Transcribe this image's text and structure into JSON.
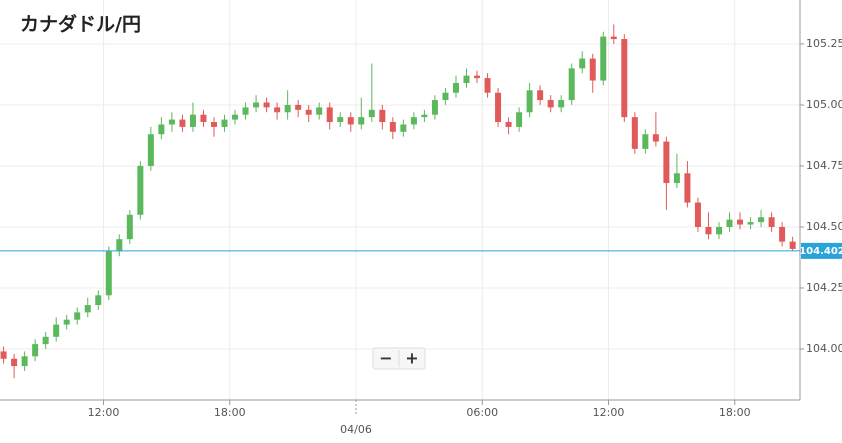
{
  "chart_data": {
    "type": "candlestick",
    "title": "カナダドル/円",
    "x": [
      7.25,
      7.75,
      8.25,
      8.75,
      9.25,
      9.75,
      10.25,
      10.75,
      11.25,
      11.75,
      12.25,
      12.75,
      13.25,
      13.75,
      14.25,
      14.75,
      15.25,
      15.75,
      16.25,
      16.75,
      17.25,
      17.75,
      18.25,
      18.75,
      19.25,
      19.75,
      20.25,
      20.75,
      21.25,
      21.75,
      22.25,
      22.75,
      23.25,
      23.75,
      24.25,
      24.75,
      25.25,
      25.75,
      26.25,
      26.75,
      27.25,
      27.75,
      28.25,
      28.75,
      29.25,
      29.75,
      30.25,
      30.75,
      31.25,
      31.75,
      32.25,
      32.75,
      33.25,
      33.75,
      34.25,
      34.75,
      35.25,
      35.75,
      36.25,
      36.75,
      37.25,
      37.75,
      38.25,
      38.75,
      39.25,
      39.75,
      40.25,
      40.75,
      41.25,
      41.75,
      42.25,
      42.75,
      43.25,
      43.75,
      44.25,
      44.75
    ],
    "open": [
      103.99,
      103.96,
      103.93,
      103.97,
      104.02,
      104.05,
      104.1,
      104.12,
      104.15,
      104.18,
      104.22,
      104.4,
      104.45,
      104.55,
      104.75,
      104.88,
      104.92,
      104.94,
      104.91,
      104.96,
      104.93,
      104.91,
      104.94,
      104.96,
      104.99,
      105.01,
      104.99,
      104.97,
      105.0,
      104.98,
      104.96,
      104.99,
      104.93,
      104.95,
      104.92,
      104.95,
      104.98,
      104.93,
      104.89,
      104.92,
      104.95,
      104.96,
      105.02,
      105.05,
      105.09,
      105.12,
      105.11,
      105.05,
      104.93,
      104.91,
      104.97,
      105.06,
      105.02,
      104.99,
      105.02,
      105.15,
      105.19,
      105.1,
      105.28,
      105.27,
      104.95,
      104.82,
      104.88,
      104.85,
      104.68,
      104.72,
      104.6,
      104.5,
      104.47,
      104.5,
      104.53,
      104.51,
      104.52,
      104.54,
      104.5,
      104.44
    ],
    "high": [
      104.01,
      103.98,
      103.99,
      104.04,
      104.07,
      104.13,
      104.14,
      104.17,
      104.21,
      104.24,
      104.42,
      104.47,
      104.57,
      104.77,
      104.91,
      104.95,
      104.97,
      104.96,
      105.01,
      104.98,
      104.95,
      104.96,
      104.98,
      105.01,
      105.04,
      105.03,
      105.01,
      105.06,
      105.02,
      105.0,
      105.01,
      105.01,
      104.97,
      104.97,
      105.03,
      105.17,
      105.0,
      104.95,
      104.94,
      104.97,
      104.98,
      105.04,
      105.07,
      105.12,
      105.15,
      105.14,
      105.13,
      105.07,
      104.95,
      104.99,
      105.09,
      105.08,
      105.04,
      105.04,
      105.17,
      105.22,
      105.21,
      105.3,
      105.33,
      105.29,
      104.97,
      104.9,
      104.97,
      104.87,
      104.8,
      104.77,
      104.62,
      104.56,
      104.52,
      104.56,
      104.56,
      104.54,
      104.57,
      104.56,
      104.52,
      104.46
    ],
    "low": [
      103.94,
      103.88,
      103.91,
      103.95,
      104.0,
      104.03,
      104.08,
      104.1,
      104.13,
      104.16,
      104.2,
      104.38,
      104.43,
      104.53,
      104.73,
      104.86,
      104.89,
      104.89,
      104.89,
      104.91,
      104.87,
      104.89,
      104.92,
      104.94,
      104.97,
      104.97,
      104.94,
      104.94,
      104.95,
      104.93,
      104.94,
      104.9,
      104.91,
      104.89,
      104.9,
      104.93,
      104.9,
      104.86,
      104.87,
      104.9,
      104.93,
      104.94,
      105.0,
      105.03,
      105.07,
      105.09,
      105.03,
      104.91,
      104.88,
      104.89,
      104.95,
      105.0,
      104.97,
      104.97,
      105.0,
      105.13,
      105.05,
      105.08,
      105.25,
      104.93,
      104.8,
      104.8,
      104.83,
      104.57,
      104.66,
      104.58,
      104.48,
      104.45,
      104.45,
      104.48,
      104.49,
      104.49,
      104.5,
      104.48,
      104.42,
      104.4
    ],
    "close": [
      103.96,
      103.93,
      103.97,
      104.02,
      104.05,
      104.1,
      104.12,
      104.15,
      104.18,
      104.22,
      104.4,
      104.45,
      104.55,
      104.75,
      104.88,
      104.92,
      104.94,
      104.91,
      104.96,
      104.93,
      104.91,
      104.94,
      104.96,
      104.99,
      105.01,
      104.99,
      104.97,
      105.0,
      104.98,
      104.96,
      104.99,
      104.93,
      104.95,
      104.92,
      104.95,
      104.98,
      104.93,
      104.89,
      104.92,
      104.95,
      104.96,
      105.02,
      105.05,
      105.09,
      105.12,
      105.11,
      105.05,
      104.93,
      104.91,
      104.97,
      105.06,
      105.02,
      104.99,
      105.02,
      105.15,
      105.19,
      105.1,
      105.28,
      105.27,
      104.95,
      104.82,
      104.88,
      104.85,
      104.68,
      104.72,
      104.6,
      104.5,
      104.47,
      104.5,
      104.53,
      104.51,
      104.52,
      104.54,
      104.5,
      104.44,
      104.41
    ],
    "up_color": "#5cb85c",
    "down_color": "#e05a5a",
    "current": 104.402,
    "current_color": "#29a3d9",
    "xlim": [
      7.08,
      45.1
    ],
    "ylim": [
      103.791,
      105.43
    ],
    "xticks": [
      {
        "value": 12,
        "label": "12:00"
      },
      {
        "value": 18,
        "label": "18:00"
      },
      {
        "value": 24,
        "label": "04/06"
      },
      {
        "value": 30,
        "label": "06:00"
      },
      {
        "value": 36,
        "label": "12:00"
      },
      {
        "value": 42,
        "label": "18:00"
      }
    ],
    "yticks": [
      {
        "value": 104,
        "label": "104.000"
      },
      {
        "value": 104.25,
        "label": "104.250"
      },
      {
        "value": 104.5,
        "label": "104.500"
      },
      {
        "value": 104.75,
        "label": "104.750"
      },
      {
        "value": 105,
        "label": "105.000"
      },
      {
        "value": 105.25,
        "label": "105.250"
      }
    ],
    "grid": true,
    "zoom_out": "−",
    "zoom_in": "+"
  }
}
